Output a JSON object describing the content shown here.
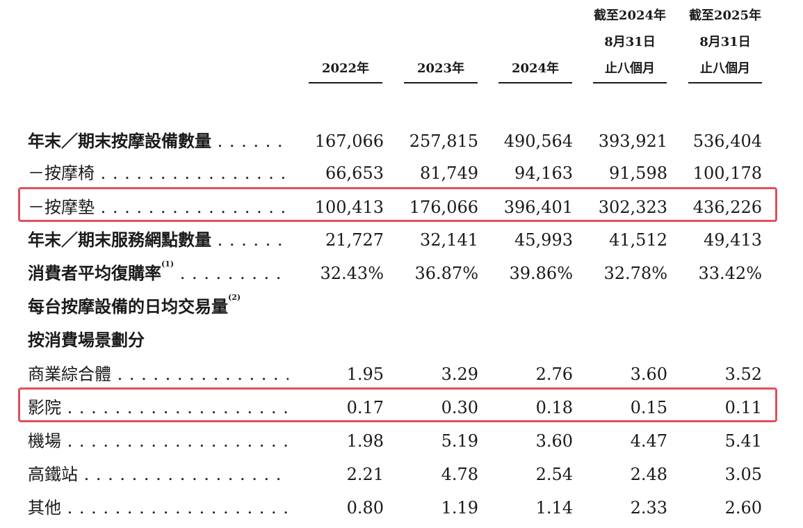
{
  "columns": [
    {
      "lines": [
        "2022年"
      ]
    },
    {
      "lines": [
        "2023年"
      ]
    },
    {
      "lines": [
        "2024年"
      ]
    },
    {
      "lines": [
        "截至2024年",
        "8月31日",
        "止八個月"
      ]
    },
    {
      "lines": [
        "截至2025年",
        "8月31日",
        "止八個月"
      ]
    }
  ],
  "rows": [
    {
      "label": "年末／期末按摩設備數量",
      "bold": true,
      "values": [
        "167,066",
        "257,815",
        "490,564",
        "393,921",
        "536,404"
      ]
    },
    {
      "label": "－按摩椅",
      "bold": false,
      "values": [
        "66,653",
        "81,749",
        "94,163",
        "91,598",
        "100,178"
      ]
    },
    {
      "label": "－按摩墊",
      "bold": false,
      "highlighted": true,
      "values": [
        "100,413",
        "176,066",
        "396,401",
        "302,323",
        "436,226"
      ]
    },
    {
      "label": "年末／期末服務網點數量",
      "bold": true,
      "values": [
        "21,727",
        "32,141",
        "45,993",
        "41,512",
        "49,413"
      ]
    },
    {
      "label": "消費者平均復購率",
      "note": "(1)",
      "bold": true,
      "values": [
        "32.43%",
        "36.87%",
        "39.86%",
        "32.78%",
        "33.42%"
      ]
    },
    {
      "label": "每台按摩設備的日均交易量",
      "note": "(2)",
      "bold": true,
      "values": []
    },
    {
      "label": "按消費場景劃分",
      "bold": true,
      "values": []
    },
    {
      "label": "商業綜合體",
      "bold": false,
      "values": [
        "1.95",
        "3.29",
        "2.76",
        "3.60",
        "3.52"
      ]
    },
    {
      "label": "影院",
      "bold": false,
      "highlighted": true,
      "values": [
        "0.17",
        "0.30",
        "0.18",
        "0.15",
        "0.11"
      ]
    },
    {
      "label": "機場",
      "bold": false,
      "values": [
        "1.98",
        "5.19",
        "3.60",
        "4.47",
        "5.41"
      ]
    },
    {
      "label": "高鐵站",
      "bold": false,
      "values": [
        "2.21",
        "4.78",
        "2.54",
        "2.48",
        "3.05"
      ]
    },
    {
      "label": "其他",
      "bold": false,
      "values": [
        "0.80",
        "1.19",
        "1.14",
        "2.33",
        "2.60"
      ]
    }
  ],
  "highlight_color": "#e0505a"
}
